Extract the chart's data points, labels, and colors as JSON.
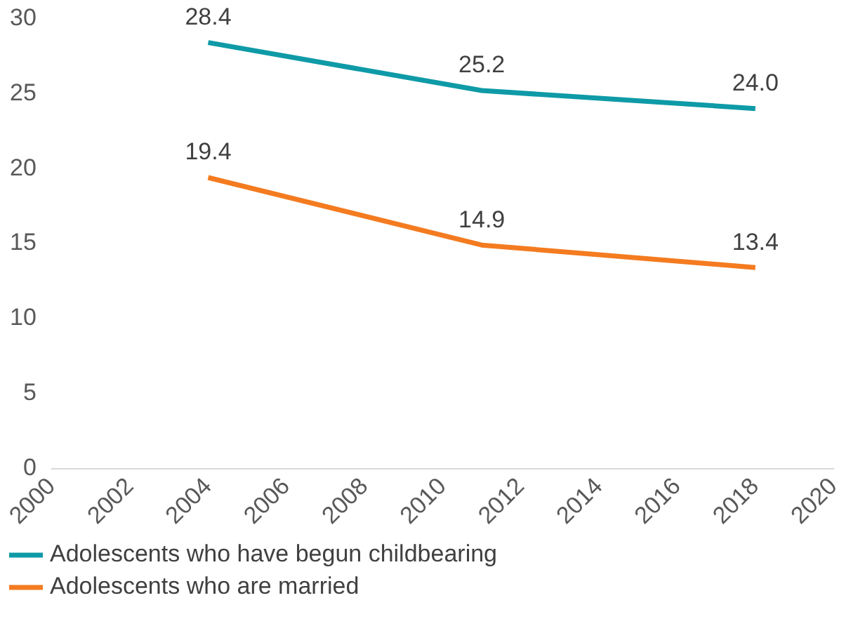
{
  "chart_data": {
    "type": "line",
    "xlim": [
      2000,
      2020
    ],
    "xticks": [
      2000,
      2002,
      2004,
      2006,
      2008,
      2010,
      2012,
      2014,
      2016,
      2018,
      2020
    ],
    "ylim": [
      0,
      30
    ],
    "yticks": [
      0,
      5,
      10,
      15,
      20,
      25,
      30
    ],
    "grid": false,
    "legend": "bottom",
    "marker": "none",
    "line_style": "solid",
    "series": [
      {
        "name": "Adolescents who have begun childbearing",
        "color": "#0e9aa7",
        "x": [
          2004,
          2011,
          2018
        ],
        "values": [
          28.4,
          25.2,
          24.0
        ],
        "value_labels": [
          "28.4",
          "25.2",
          "24.0"
        ]
      },
      {
        "name": "Adolescents who are married",
        "color": "#f47b20",
        "x": [
          2004,
          2011,
          2018
        ],
        "values": [
          19.4,
          14.9,
          13.4
        ],
        "value_labels": [
          "19.4",
          "14.9",
          "13.4"
        ]
      }
    ]
  }
}
